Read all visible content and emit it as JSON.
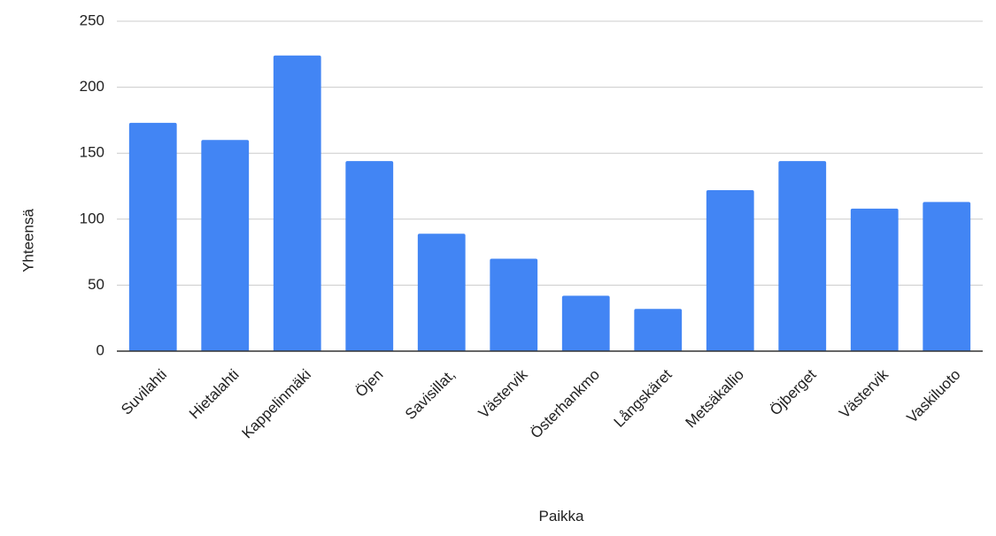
{
  "chart_data": {
    "type": "bar",
    "categories": [
      "Suvilahti",
      "Hietalahti",
      "Kappelinmäki",
      "Öjen",
      "Savisillat,",
      "Västervik",
      "Österhankmo",
      "Långskäret",
      "Metsäkallio",
      "Öjberget",
      "Västervik",
      "Vaskiluoto"
    ],
    "values": [
      173,
      160,
      224,
      144,
      89,
      70,
      42,
      32,
      122,
      144,
      108,
      113
    ],
    "xlabel": "Paikka",
    "ylabel": "Yhteensä",
    "ylim": [
      0,
      250
    ],
    "yticks": [
      0,
      50,
      100,
      150,
      200,
      250
    ],
    "grid": true,
    "bar_color": "#4285F4",
    "grid_color": "#cccccc",
    "axis_color": "#333333"
  }
}
